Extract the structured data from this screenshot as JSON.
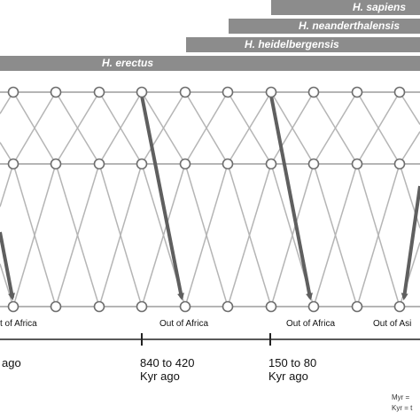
{
  "species": [
    {
      "name": "H. sapiens"
    },
    {
      "name": "H. neanderthalensis"
    },
    {
      "name": "H. heidelbergensis"
    },
    {
      "name": "H. erectus"
    }
  ],
  "events": [
    {
      "label": "t of Africa"
    },
    {
      "label": "Out of Africa"
    },
    {
      "label": "Out of Africa"
    },
    {
      "label": "Out of Asi"
    }
  ],
  "timeline": [
    {
      "line1": "",
      "line2": "ago"
    },
    {
      "line1": "840 to 420",
      "line2": "Kyr ago"
    },
    {
      "line1": "150 to 80",
      "line2": "Kyr ago"
    }
  ],
  "legend": {
    "myr": "Myr =",
    "kyr": "Kyr = t"
  },
  "colors": {
    "bar": "#8c8c8c",
    "node_fill": "#ffffff",
    "node_stroke": "#6e6e6e",
    "edge": "#b5b5b5",
    "migration_arrow": "#5f5f5f",
    "axis": "#222222"
  }
}
